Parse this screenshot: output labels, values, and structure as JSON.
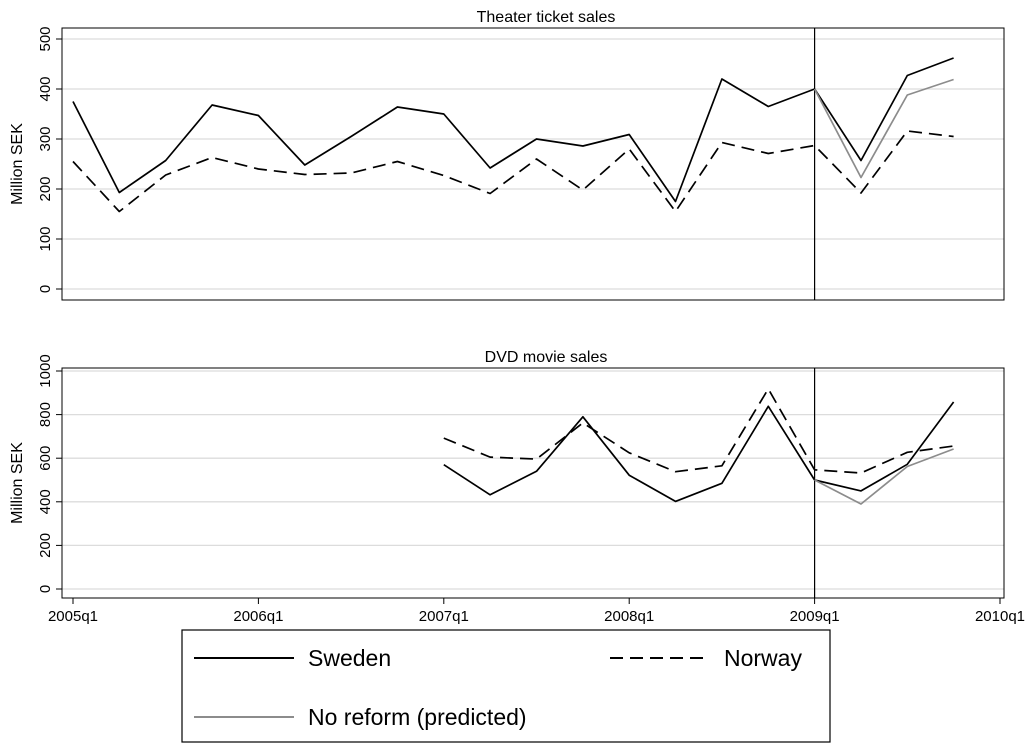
{
  "chart_data": [
    {
      "type": "line",
      "title": "Theater ticket sales",
      "ylabel": "Million SEK",
      "xlabel": "",
      "ylim": [
        -25,
        525
      ],
      "yticks": [
        0,
        100,
        200,
        300,
        400,
        500
      ],
      "xlim": [
        2005.0,
        2010.0
      ],
      "reference_line_x": "2009q1",
      "grid": true,
      "series": [
        {
          "name": "Sweden",
          "style": "solid",
          "color": "#000000",
          "x": [
            "2005q1",
            "2005q2",
            "2005q3",
            "2005q4",
            "2006q1",
            "2006q2",
            "2006q3",
            "2006q4",
            "2007q1",
            "2007q2",
            "2007q3",
            "2007q4",
            "2008q1",
            "2008q2",
            "2008q3",
            "2008q4",
            "2009q1",
            "2009q2",
            "2009q3",
            "2009q4"
          ],
          "values": [
            375,
            193,
            257,
            368,
            347,
            248,
            305,
            364,
            350,
            242,
            300,
            286,
            309,
            175,
            420,
            365,
            400,
            257,
            427,
            462
          ]
        },
        {
          "name": "Norway",
          "style": "dashed",
          "color": "#000000",
          "x": [
            "2005q1",
            "2005q2",
            "2005q3",
            "2005q4",
            "2006q1",
            "2006q2",
            "2006q3",
            "2006q4",
            "2007q1",
            "2007q2",
            "2007q3",
            "2007q4",
            "2008q1",
            "2008q2",
            "2008q3",
            "2008q4",
            "2009q1",
            "2009q2",
            "2009q3",
            "2009q4"
          ],
          "values": [
            255,
            155,
            228,
            263,
            240,
            229,
            232,
            255,
            227,
            191,
            260,
            198,
            280,
            155,
            293,
            271,
            287,
            192,
            316,
            305
          ]
        },
        {
          "name": "No reform (predicted)",
          "style": "solid",
          "color": "#8c8c8c",
          "x": [
            "2009q1",
            "2009q2",
            "2009q3",
            "2009q4"
          ],
          "values": [
            400,
            223,
            388,
            419
          ]
        }
      ]
    },
    {
      "type": "line",
      "title": "DVD movie sales",
      "ylabel": "Million SEK",
      "xlabel": "",
      "ylim": [
        -50,
        1050
      ],
      "yticks": [
        0,
        200,
        400,
        600,
        800,
        1000
      ],
      "xlim": [
        2005.0,
        2010.0
      ],
      "reference_line_x": "2009q1",
      "grid": true,
      "series": [
        {
          "name": "Sweden",
          "style": "solid",
          "color": "#000000",
          "x": [
            "2007q1",
            "2007q2",
            "2007q3",
            "2007q4",
            "2008q1",
            "2008q2",
            "2008q3",
            "2008q4",
            "2009q1",
            "2009q2",
            "2009q3",
            "2009q4"
          ],
          "values": [
            570,
            432,
            540,
            790,
            522,
            402,
            485,
            838,
            500,
            450,
            572,
            858
          ]
        },
        {
          "name": "Norway",
          "style": "dashed",
          "color": "#000000",
          "x": [
            "2007q1",
            "2007q2",
            "2007q3",
            "2007q4",
            "2008q1",
            "2008q2",
            "2008q3",
            "2008q4",
            "2009q1",
            "2009q2",
            "2009q3",
            "2009q4"
          ],
          "values": [
            692,
            605,
            596,
            762,
            625,
            538,
            565,
            918,
            547,
            532,
            627,
            656
          ]
        },
        {
          "name": "No reform (predicted)",
          "style": "solid",
          "color": "#8c8c8c",
          "x": [
            "2009q1",
            "2009q2",
            "2009q3",
            "2009q4"
          ],
          "values": [
            500,
            390,
            562,
            642
          ]
        }
      ]
    }
  ],
  "x_ticks": [
    "2005q1",
    "2006q1",
    "2007q1",
    "2008q1",
    "2009q1",
    "2010q1"
  ],
  "legend": {
    "position": "bottom",
    "items": [
      {
        "label": "Sweden",
        "style": "solid",
        "color": "#000000"
      },
      {
        "label": "Norway",
        "style": "dashed",
        "color": "#000000"
      },
      {
        "label": "No reform (predicted)",
        "style": "solid",
        "color": "#8c8c8c"
      }
    ]
  }
}
